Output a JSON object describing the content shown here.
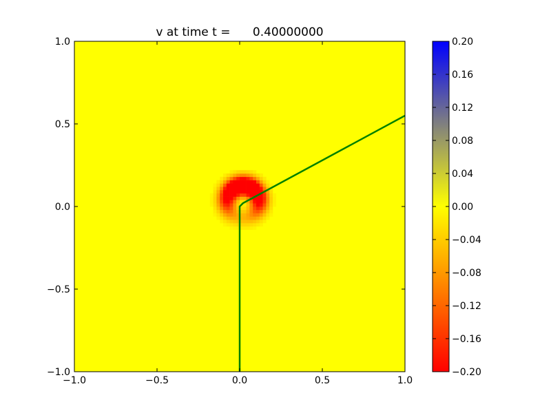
{
  "chart_data": {
    "type": "heatmap",
    "title": "v at time t =      0.40000000",
    "xlabel": "",
    "ylabel": "",
    "xlim": [
      -1.0,
      1.0
    ],
    "ylim": [
      -1.0,
      1.0
    ],
    "x_ticks": [
      "−1.0",
      "−0.5",
      "0.0",
      "0.5",
      "1.0"
    ],
    "x_tick_values": [
      -1.0,
      -0.5,
      0.0,
      0.5,
      1.0
    ],
    "y_ticks": [
      "−1.0",
      "−0.5",
      "0.0",
      "0.5",
      "1.0"
    ],
    "y_tick_values": [
      -1.0,
      -0.5,
      0.0,
      0.5,
      1.0
    ],
    "grid": false,
    "colorbar": {
      "range": [
        -0.2,
        0.2
      ],
      "ticks": [
        "−0.20",
        "−0.16",
        "−0.12",
        "−0.08",
        "−0.04",
        "0.00",
        "0.04",
        "0.08",
        "0.12",
        "0.16",
        "0.20"
      ],
      "tick_values": [
        -0.2,
        -0.16,
        -0.12,
        -0.08,
        -0.04,
        0.0,
        0.04,
        0.08,
        0.12,
        0.16,
        0.2
      ],
      "colors": {
        "min": "#ff0000",
        "mid": "#ffff00",
        "max": "#0000ff"
      }
    },
    "background_value": 0.0,
    "feature": {
      "description_value": "red crescent region of negative v near origin",
      "center": [
        0.02,
        0.03
      ],
      "min_value": -0.2
    },
    "lines": [
      {
        "color": "#008000",
        "points": [
          [
            0.0,
            -1.0
          ],
          [
            0.0,
            0.0
          ],
          [
            0.02,
            0.02
          ],
          [
            1.0,
            0.55
          ]
        ]
      }
    ]
  }
}
